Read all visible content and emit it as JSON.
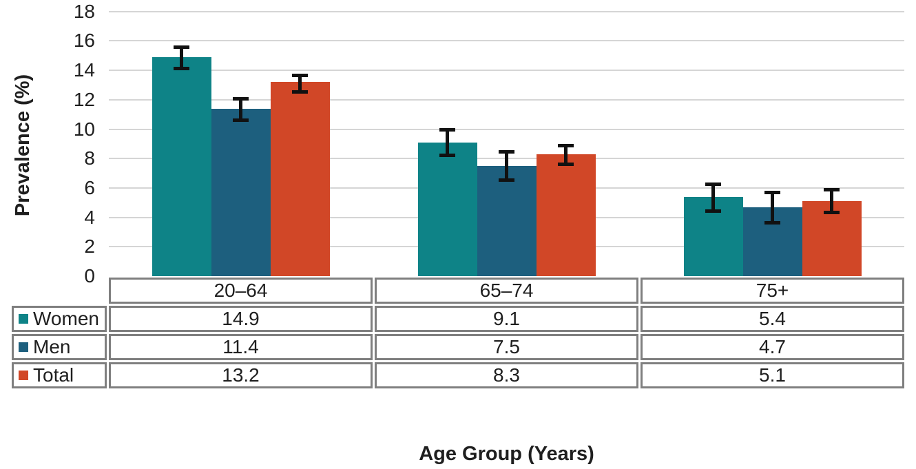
{
  "chart_data": {
    "type": "bar",
    "title": "",
    "xlabel": "Age Group (Years)",
    "ylabel": "Prevalence (%)",
    "categories": [
      "20–64",
      "65–74",
      "75+"
    ],
    "series": [
      {
        "name": "Women",
        "color": "#0E8387",
        "values": [
          14.9,
          9.1,
          5.4
        ],
        "value_labels": [
          "14.9",
          "9.1",
          "5.4"
        ],
        "err_low": [
          14.2,
          8.3,
          4.5
        ],
        "err_high": [
          15.5,
          9.9,
          6.2
        ]
      },
      {
        "name": "Men",
        "color": "#1D5F7E",
        "values": [
          11.4,
          7.5,
          4.7
        ],
        "value_labels": [
          "11.4",
          "7.5",
          "4.7"
        ],
        "err_low": [
          10.7,
          6.6,
          3.7
        ],
        "err_high": [
          12.0,
          8.4,
          5.6
        ]
      },
      {
        "name": "Total",
        "color": "#D14727",
        "values": [
          13.2,
          8.3,
          5.1
        ],
        "value_labels": [
          "13.2",
          "8.3",
          "5.1"
        ],
        "err_low": [
          12.6,
          7.7,
          4.4
        ],
        "err_high": [
          13.6,
          8.8,
          5.8
        ]
      }
    ],
    "ylim": [
      0,
      18
    ],
    "yticks": [
      0,
      2,
      4,
      6,
      8,
      10,
      12,
      14,
      16,
      18
    ],
    "ytick_labels": [
      "0",
      "2",
      "4",
      "6",
      "8",
      "10",
      "12",
      "14",
      "16",
      "18"
    ],
    "grid": "horizontal",
    "error_bars": true,
    "legend_position": "data-table-left",
    "colors": {
      "gridline": "#D5D5D5",
      "table_border": "#7F7F7F",
      "error_bar": "#111111",
      "text": "#1F1F1F",
      "background": "#FFFFFF"
    }
  }
}
